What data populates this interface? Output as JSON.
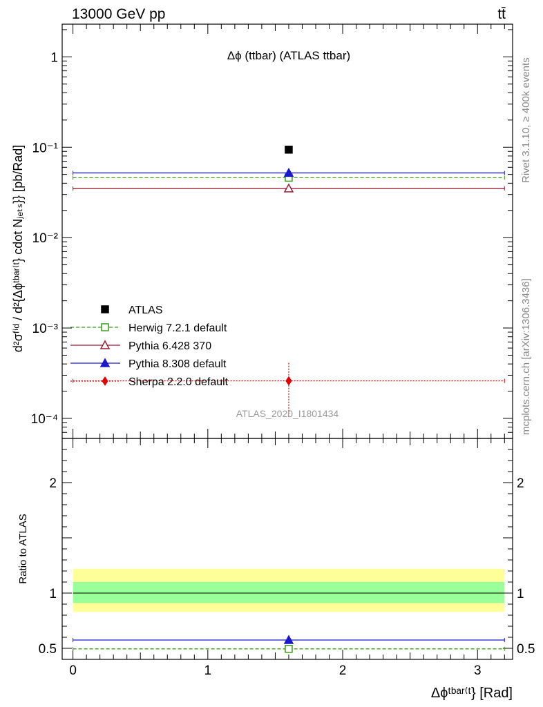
{
  "header": {
    "left": "13000 GeV pp",
    "right": "tt̄"
  },
  "side_labels": {
    "rivet": "Rivet 3.1.10, ≥ 400k events",
    "mcplots": "mcplots.cern.ch [arXiv:1306.3436]"
  },
  "chart_data": [
    {
      "type": "scatter",
      "title": "Δϕ (ttbar) (ATLAS ttbar)",
      "watermark": "ATLAS_2020_I1801434",
      "ylabel": "d²σᶠⁱᵈ / d²{Δϕᵗᵇᵃʳ⁽ᵗ} cdot Nⱼₑₜₛ}} [pb/Rad]",
      "yscale": "log",
      "ylim": [
        6e-05,
        2.3
      ],
      "xlim": [
        -0.08,
        3.26
      ],
      "yticks": [
        {
          "value": 1,
          "label": "1"
        },
        {
          "value": 0.1,
          "label": "10⁻¹"
        },
        {
          "value": 0.01,
          "label": "10⁻²"
        },
        {
          "value": 0.001,
          "label": "10⁻³"
        },
        {
          "value": 0.0001,
          "label": "10⁻⁴"
        }
      ],
      "legend_position": "lower-left",
      "series": [
        {
          "name": "ATLAS",
          "marker": "filled-square",
          "color": "#000000",
          "line": "none",
          "x": [
            1.6
          ],
          "y": [
            0.094
          ],
          "xerr": [
            0.0
          ],
          "yerr": [
            0.0
          ]
        },
        {
          "name": "Herwig 7.2.1 default",
          "marker": "open-square",
          "color": "#3a9a1a",
          "line": "dashed",
          "x": [
            1.6
          ],
          "y": [
            0.046
          ],
          "xlo": [
            0.0
          ],
          "xhi": [
            3.2
          ]
        },
        {
          "name": "Pythia 6.428 370",
          "marker": "open-triangle",
          "color": "#9b1b30",
          "line": "solid",
          "x": [
            1.6
          ],
          "y": [
            0.035
          ],
          "xlo": [
            0.0
          ],
          "xhi": [
            3.2
          ]
        },
        {
          "name": "Pythia 8.308 default",
          "marker": "filled-triangle",
          "color": "#1a1acc",
          "line": "solid",
          "x": [
            1.6
          ],
          "y": [
            0.052
          ],
          "xlo": [
            0.0
          ],
          "xhi": [
            3.2
          ]
        },
        {
          "name": "Sherpa 2.2.0 default",
          "marker": "filled-diamond",
          "color": "#e00000",
          "line": "dotted",
          "x": [
            1.6
          ],
          "y": [
            0.00026
          ],
          "xlo": [
            0.0
          ],
          "xhi": [
            3.2
          ],
          "ylo": [
            0.0001
          ],
          "yhi": [
            0.00041
          ]
        }
      ]
    },
    {
      "type": "scatter",
      "ylabel": "Ratio to ATLAS",
      "xlabel": "Δϕᵗᵇᵃʳ⁽ᵗ} [Rad]",
      "xlim": [
        -0.08,
        3.26
      ],
      "ylim": [
        0.4,
        2.4
      ],
      "xticks": [
        0,
        1,
        2,
        3
      ],
      "yticks": [
        0.5,
        1,
        2
      ],
      "bands": [
        {
          "name": "total-uncertainty",
          "color": "#ffff99",
          "lo": 0.83,
          "hi": 1.22
        },
        {
          "name": "stat-uncertainty",
          "color": "#99ff99",
          "lo": 0.91,
          "hi": 1.1
        }
      ],
      "series": [
        {
          "name": "Pythia 8.308 default",
          "color": "#1a1acc",
          "line": "solid",
          "x": [
            1.6
          ],
          "y": [
            0.575
          ],
          "ylo": [
            0.55
          ],
          "yhi": [
            0.6
          ],
          "xlo": [
            0.0
          ],
          "xhi": [
            3.2
          ]
        },
        {
          "name": "Herwig 7.2.1 default",
          "color": "#3a9a1a",
          "line": "dashed",
          "x": [
            1.6
          ],
          "y": [
            0.495
          ],
          "xlo": [
            0.0
          ],
          "xhi": [
            3.2
          ]
        }
      ]
    }
  ]
}
